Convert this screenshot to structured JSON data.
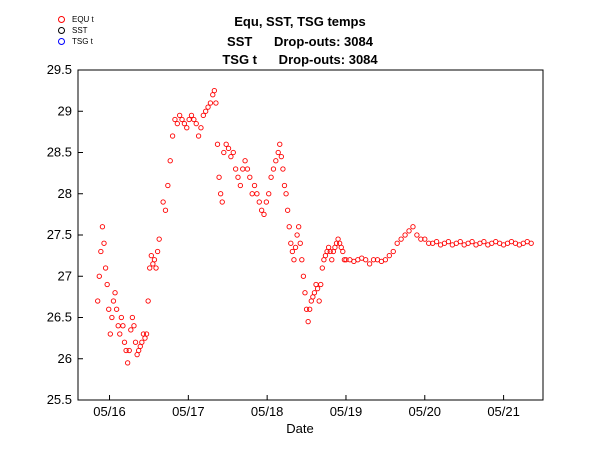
{
  "chart_data": {
    "type": "scatter",
    "title_lines": [
      "Equ, SST, TSG temps",
      "SST      Drop-outs: 3084",
      "TSG t      Drop-outs: 3084"
    ],
    "xlabel": "Date",
    "ylabel": "",
    "x_tick_labels": [
      "05/16",
      "05/17",
      "05/18",
      "05/19",
      "05/20",
      "05/21"
    ],
    "ylim": [
      25.5,
      29.5
    ],
    "yticks": [
      25.5,
      26,
      26.5,
      27,
      27.5,
      28,
      28.5,
      29,
      29.5
    ],
    "xlim": [
      15.6,
      21.5
    ],
    "grid": false,
    "legend_position": "top-left",
    "marker": "open-circle",
    "series": [
      {
        "name": "EQU t",
        "color": "#ff0000",
        "points": [
          [
            15.85,
            26.7
          ],
          [
            15.87,
            27.0
          ],
          [
            15.89,
            27.3
          ],
          [
            15.91,
            27.6
          ],
          [
            15.93,
            27.4
          ],
          [
            15.95,
            27.1
          ],
          [
            15.97,
            26.9
          ],
          [
            15.99,
            26.6
          ],
          [
            16.01,
            26.3
          ],
          [
            16.03,
            26.5
          ],
          [
            16.05,
            26.7
          ],
          [
            16.07,
            26.8
          ],
          [
            16.09,
            26.6
          ],
          [
            16.11,
            26.4
          ],
          [
            16.13,
            26.3
          ],
          [
            16.15,
            26.5
          ],
          [
            16.17,
            26.4
          ],
          [
            16.19,
            26.2
          ],
          [
            16.21,
            26.1
          ],
          [
            16.23,
            25.95
          ],
          [
            16.25,
            26.1
          ],
          [
            16.27,
            26.35
          ],
          [
            16.29,
            26.5
          ],
          [
            16.31,
            26.4
          ],
          [
            16.33,
            26.2
          ],
          [
            16.35,
            26.05
          ],
          [
            16.37,
            26.1
          ],
          [
            16.39,
            26.15
          ],
          [
            16.41,
            26.2
          ],
          [
            16.43,
            26.3
          ],
          [
            16.45,
            26.25
          ],
          [
            16.47,
            26.3
          ],
          [
            16.49,
            26.7
          ],
          [
            16.51,
            27.1
          ],
          [
            16.53,
            27.25
          ],
          [
            16.55,
            27.15
          ],
          [
            16.57,
            27.2
          ],
          [
            16.59,
            27.1
          ],
          [
            16.61,
            27.3
          ],
          [
            16.63,
            27.45
          ],
          [
            16.68,
            27.9
          ],
          [
            16.71,
            27.8
          ],
          [
            16.74,
            28.1
          ],
          [
            16.77,
            28.4
          ],
          [
            16.8,
            28.7
          ],
          [
            16.83,
            28.9
          ],
          [
            16.86,
            28.85
          ],
          [
            16.89,
            28.95
          ],
          [
            16.92,
            28.9
          ],
          [
            16.95,
            28.85
          ],
          [
            16.98,
            28.8
          ],
          [
            17.01,
            28.9
          ],
          [
            17.04,
            28.95
          ],
          [
            17.07,
            28.9
          ],
          [
            17.1,
            28.85
          ],
          [
            17.13,
            28.7
          ],
          [
            17.16,
            28.8
          ],
          [
            17.19,
            28.95
          ],
          [
            17.22,
            29.0
          ],
          [
            17.25,
            29.05
          ],
          [
            17.28,
            29.1
          ],
          [
            17.31,
            29.2
          ],
          [
            17.33,
            29.25
          ],
          [
            17.35,
            29.1
          ],
          [
            17.37,
            28.6
          ],
          [
            17.39,
            28.2
          ],
          [
            17.41,
            28.0
          ],
          [
            17.43,
            27.9
          ],
          [
            17.45,
            28.5
          ],
          [
            17.48,
            28.6
          ],
          [
            17.51,
            28.55
          ],
          [
            17.54,
            28.45
          ],
          [
            17.57,
            28.5
          ],
          [
            17.6,
            28.3
          ],
          [
            17.63,
            28.2
          ],
          [
            17.66,
            28.1
          ],
          [
            17.69,
            28.3
          ],
          [
            17.72,
            28.4
          ],
          [
            17.75,
            28.3
          ],
          [
            17.78,
            28.2
          ],
          [
            17.81,
            28.0
          ],
          [
            17.84,
            28.1
          ],
          [
            17.87,
            28.0
          ],
          [
            17.9,
            27.9
          ],
          [
            17.93,
            27.8
          ],
          [
            17.96,
            27.75
          ],
          [
            17.99,
            27.9
          ],
          [
            18.02,
            28.0
          ],
          [
            18.05,
            28.2
          ],
          [
            18.08,
            28.3
          ],
          [
            18.11,
            28.4
          ],
          [
            18.14,
            28.5
          ],
          [
            18.16,
            28.6
          ],
          [
            18.18,
            28.45
          ],
          [
            18.2,
            28.3
          ],
          [
            18.22,
            28.1
          ],
          [
            18.24,
            28.0
          ],
          [
            18.26,
            27.8
          ],
          [
            18.28,
            27.6
          ],
          [
            18.3,
            27.4
          ],
          [
            18.32,
            27.3
          ],
          [
            18.34,
            27.2
          ],
          [
            18.36,
            27.35
          ],
          [
            18.38,
            27.5
          ],
          [
            18.4,
            27.6
          ],
          [
            18.42,
            27.4
          ],
          [
            18.44,
            27.2
          ],
          [
            18.46,
            27.0
          ],
          [
            18.48,
            26.8
          ],
          [
            18.5,
            26.6
          ],
          [
            18.52,
            26.45
          ],
          [
            18.54,
            26.6
          ],
          [
            18.56,
            26.7
          ],
          [
            18.58,
            26.75
          ],
          [
            18.6,
            26.8
          ],
          [
            18.62,
            26.9
          ],
          [
            18.64,
            26.85
          ],
          [
            18.66,
            26.7
          ],
          [
            18.68,
            26.9
          ],
          [
            18.7,
            27.1
          ],
          [
            18.72,
            27.2
          ],
          [
            18.74,
            27.25
          ],
          [
            18.76,
            27.3
          ],
          [
            18.78,
            27.35
          ],
          [
            18.8,
            27.3
          ],
          [
            18.82,
            27.2
          ],
          [
            18.84,
            27.3
          ],
          [
            18.86,
            27.35
          ],
          [
            18.88,
            27.4
          ],
          [
            18.9,
            27.45
          ],
          [
            18.92,
            27.4
          ],
          [
            18.94,
            27.35
          ],
          [
            18.96,
            27.3
          ],
          [
            18.98,
            27.2
          ],
          [
            19.0,
            27.2
          ],
          [
            19.05,
            27.2
          ],
          [
            19.1,
            27.18
          ],
          [
            19.15,
            27.2
          ],
          [
            19.2,
            27.22
          ],
          [
            19.25,
            27.2
          ],
          [
            19.3,
            27.15
          ],
          [
            19.35,
            27.2
          ],
          [
            19.4,
            27.2
          ],
          [
            19.45,
            27.18
          ],
          [
            19.5,
            27.2
          ],
          [
            19.55,
            27.25
          ],
          [
            19.6,
            27.3
          ],
          [
            19.65,
            27.4
          ],
          [
            19.7,
            27.45
          ],
          [
            19.75,
            27.5
          ],
          [
            19.8,
            27.55
          ],
          [
            19.85,
            27.6
          ],
          [
            19.9,
            27.5
          ],
          [
            19.95,
            27.45
          ],
          [
            20.0,
            27.45
          ],
          [
            20.05,
            27.4
          ],
          [
            20.1,
            27.4
          ],
          [
            20.15,
            27.42
          ],
          [
            20.2,
            27.38
          ],
          [
            20.25,
            27.4
          ],
          [
            20.3,
            27.42
          ],
          [
            20.35,
            27.38
          ],
          [
            20.4,
            27.4
          ],
          [
            20.45,
            27.42
          ],
          [
            20.5,
            27.38
          ],
          [
            20.55,
            27.4
          ],
          [
            20.6,
            27.42
          ],
          [
            20.65,
            27.38
          ],
          [
            20.7,
            27.4
          ],
          [
            20.75,
            27.42
          ],
          [
            20.8,
            27.38
          ],
          [
            20.85,
            27.4
          ],
          [
            20.9,
            27.42
          ],
          [
            20.95,
            27.4
          ],
          [
            21.0,
            27.38
          ],
          [
            21.05,
            27.4
          ],
          [
            21.1,
            27.42
          ],
          [
            21.15,
            27.4
          ],
          [
            21.2,
            27.38
          ],
          [
            21.25,
            27.4
          ],
          [
            21.3,
            27.42
          ],
          [
            21.35,
            27.4
          ]
        ]
      },
      {
        "name": "SST",
        "color": "#000000",
        "points": []
      },
      {
        "name": "TSG t",
        "color": "#0000ff",
        "points": []
      }
    ]
  }
}
